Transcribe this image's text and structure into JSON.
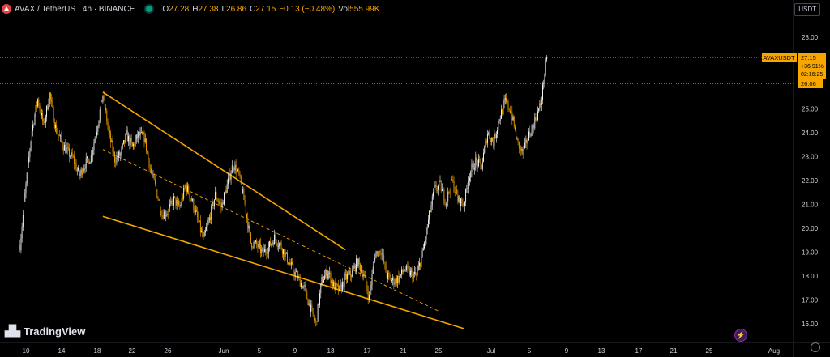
{
  "header": {
    "title": "AVAX / TetherUS · 4h · BINANCE",
    "open_label": "O",
    "open": "27.28",
    "high_label": "H",
    "high": "27.38",
    "low_label": "L",
    "low": "26.86",
    "close_label": "C",
    "close": "27.15",
    "change": "−0.13 (−0.48%)",
    "vol_label": "Vol",
    "vol": "555.99K"
  },
  "currency_button": "USDT",
  "price_axis": {
    "ticks": [
      "28.00",
      "27.00",
      "26.00",
      "25.00",
      "24.00",
      "23.00",
      "22.00",
      "21.00",
      "20.00",
      "19.00",
      "18.00",
      "17.00",
      "16.00"
    ],
    "symbol_label": "AVAXUSDT",
    "last_price": "27.15",
    "last_change": "+36.91%",
    "countdown": "02:16:25",
    "level_label": "26.06"
  },
  "time_axis": {
    "ticks": [
      "10",
      "14",
      "18",
      "22",
      "26",
      "Jun",
      "5",
      "9",
      "13",
      "17",
      "21",
      "25",
      "Jul",
      "5",
      "9",
      "13",
      "17",
      "21",
      "25",
      "Aug"
    ]
  },
  "watermark": "TradingView",
  "colors": {
    "background": "#000000",
    "accent": "#f7a600",
    "candle_up": "#ffffff",
    "candle_down": "#f7a600",
    "last_price_bg": "#f7a600",
    "level_line": "#f7a600"
  },
  "chart_data": {
    "type": "candlestick",
    "symbol": "AVAX / TetherUS",
    "interval": "4h",
    "exchange": "BINANCE",
    "ylim": [
      15.6,
      28.8
    ],
    "horizontal_levels": [
      27.15,
      26.06
    ],
    "channel": {
      "upper": [
        [
          "May 23",
          25.7
        ],
        [
          "Jul 3",
          19.1
        ]
      ],
      "middle": [
        [
          "May 23",
          23.3
        ],
        [
          "Jul 19",
          16.5
        ]
      ],
      "lower": [
        [
          "May 23",
          20.5
        ],
        [
          "Jul 23",
          15.8
        ]
      ]
    },
    "close_path": [
      [
        "May 9",
        19.3
      ],
      [
        "May 10",
        21.8
      ],
      [
        "May 11",
        24.1
      ],
      [
        "May 12",
        25.4
      ],
      [
        "May 13",
        24.3
      ],
      [
        "May 14",
        25.6
      ],
      [
        "May 15",
        24.2
      ],
      [
        "May 16",
        23.6
      ],
      [
        "May 17",
        23.2
      ],
      [
        "May 18",
        22.9
      ],
      [
        "May 19",
        22.2
      ],
      [
        "May 20",
        22.7
      ],
      [
        "May 21",
        23.0
      ],
      [
        "May 22",
        24.2
      ],
      [
        "May 23",
        25.6
      ],
      [
        "May 24",
        24.0
      ],
      [
        "May 25",
        22.9
      ],
      [
        "May 26",
        23.1
      ],
      [
        "May 27",
        23.9
      ],
      [
        "May 28",
        23.4
      ],
      [
        "May 29",
        23.9
      ],
      [
        "May 30",
        23.8
      ],
      [
        "May 31",
        22.5
      ],
      [
        "Jun 1",
        21.6
      ],
      [
        "Jun 2",
        20.6
      ],
      [
        "Jun 3",
        20.7
      ],
      [
        "Jun 4",
        21.2
      ],
      [
        "Jun 5",
        20.9
      ],
      [
        "Jun 6",
        21.8
      ],
      [
        "Jun 7",
        21.2
      ],
      [
        "Jun 8",
        20.4
      ],
      [
        "Jun 9",
        19.5
      ],
      [
        "Jun 10",
        20.4
      ],
      [
        "Jun 11",
        21.4
      ],
      [
        "Jun 12",
        20.9
      ],
      [
        "Jun 13",
        21.8
      ],
      [
        "Jun 14",
        22.7
      ],
      [
        "Jun 15",
        22.2
      ],
      [
        "Jun 16",
        21.0
      ],
      [
        "Jun 17",
        19.4
      ],
      [
        "Jun 18",
        19.3
      ],
      [
        "Jun 19",
        19.0
      ],
      [
        "Jun 20",
        19.2
      ],
      [
        "Jun 21",
        19.6
      ],
      [
        "Jun 22",
        19.3
      ],
      [
        "Jun 23",
        18.8
      ],
      [
        "Jun 24",
        18.3
      ],
      [
        "Jun 25",
        17.9
      ],
      [
        "Jun 26",
        17.5
      ],
      [
        "Jun 27",
        16.7
      ],
      [
        "Jun 28",
        16.0
      ],
      [
        "Jun 29",
        17.8
      ],
      [
        "Jun 30",
        18.2
      ],
      [
        "Jul 1",
        17.6
      ],
      [
        "Jul 2",
        17.4
      ],
      [
        "Jul 3",
        17.9
      ],
      [
        "Jul 4",
        18.1
      ],
      [
        "Jul 5",
        18.6
      ],
      [
        "Jul 6",
        18.1
      ],
      [
        "Jul 7",
        17.1
      ],
      [
        "Jul 8",
        18.9
      ],
      [
        "Jul 9",
        19.1
      ],
      [
        "Jul 10",
        18.0
      ],
      [
        "Jul 11",
        17.8
      ],
      [
        "Jul 12",
        17.9
      ],
      [
        "Jul 13",
        18.3
      ],
      [
        "Jul 14",
        18.1
      ],
      [
        "Jul 15",
        18.0
      ],
      [
        "Jul 16",
        18.9
      ],
      [
        "Jul 17",
        20.3
      ],
      [
        "Jul 18",
        21.6
      ],
      [
        "Jul 19",
        21.8
      ],
      [
        "Jul 20",
        21.1
      ],
      [
        "Jul 21",
        22.0
      ],
      [
        "Jul 22",
        21.2
      ],
      [
        "Jul 23",
        21.0
      ],
      [
        "Jul 24",
        22.3
      ],
      [
        "Jul 25",
        22.8
      ],
      [
        "Jul 26",
        22.6
      ],
      [
        "Jul 27",
        24.0
      ],
      [
        "Jul 28",
        23.6
      ],
      [
        "Jul 29",
        24.6
      ],
      [
        "Jul 30",
        25.3
      ],
      [
        "Jul 31",
        24.9
      ],
      [
        "Aug 1",
        23.6
      ],
      [
        "Aug 2",
        23.1
      ],
      [
        "Aug 3",
        23.9
      ],
      [
        "Aug 4",
        24.5
      ],
      [
        "Aug 5",
        25.2
      ],
      [
        "Aug 6",
        27.15
      ]
    ]
  }
}
